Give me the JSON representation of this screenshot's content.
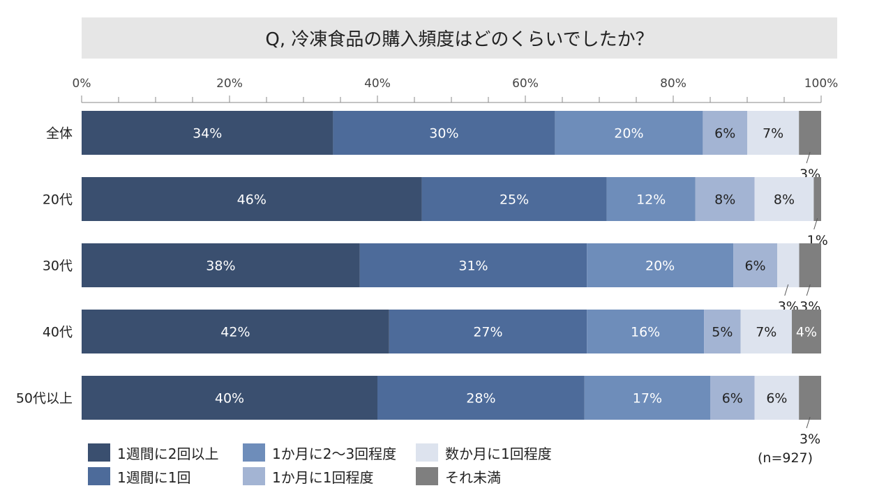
{
  "title": "Q, 冷凍食品の購入頻度はどのくらいでしたか？",
  "sample_note": "(n=927)",
  "colors": {
    "s1": "#3a4f6f",
    "s2": "#4d6b9a",
    "s3": "#6e8dba",
    "s4": "#a3b4d3",
    "s5": "#dde3ee",
    "s6": "#7f7f7f"
  },
  "chart_data": {
    "type": "bar",
    "orientation": "horizontal",
    "stacked": "100%",
    "categories": [
      "全体",
      "20代",
      "30代",
      "40代",
      "50代以上"
    ],
    "series": [
      {
        "name": "1週間に2回以上",
        "values": [
          34,
          46,
          38,
          42,
          40
        ]
      },
      {
        "name": "1週間に1回",
        "values": [
          30,
          25,
          31,
          27,
          28
        ]
      },
      {
        "name": "1か月に2～3回程度",
        "values": [
          20,
          12,
          20,
          16,
          17
        ]
      },
      {
        "name": "1か月に1回程度",
        "values": [
          6,
          8,
          6,
          5,
          6
        ]
      },
      {
        "name": "数か月に1回程度",
        "values": [
          7,
          8,
          3,
          7,
          6
        ]
      },
      {
        "name": "それ未満",
        "values": [
          3,
          1,
          3,
          4,
          3
        ]
      }
    ],
    "x_ticks": [
      "0%",
      "20%",
      "40%",
      "60%",
      "80%",
      "100%"
    ],
    "xlim": [
      0,
      100
    ],
    "legend": "bottom"
  }
}
